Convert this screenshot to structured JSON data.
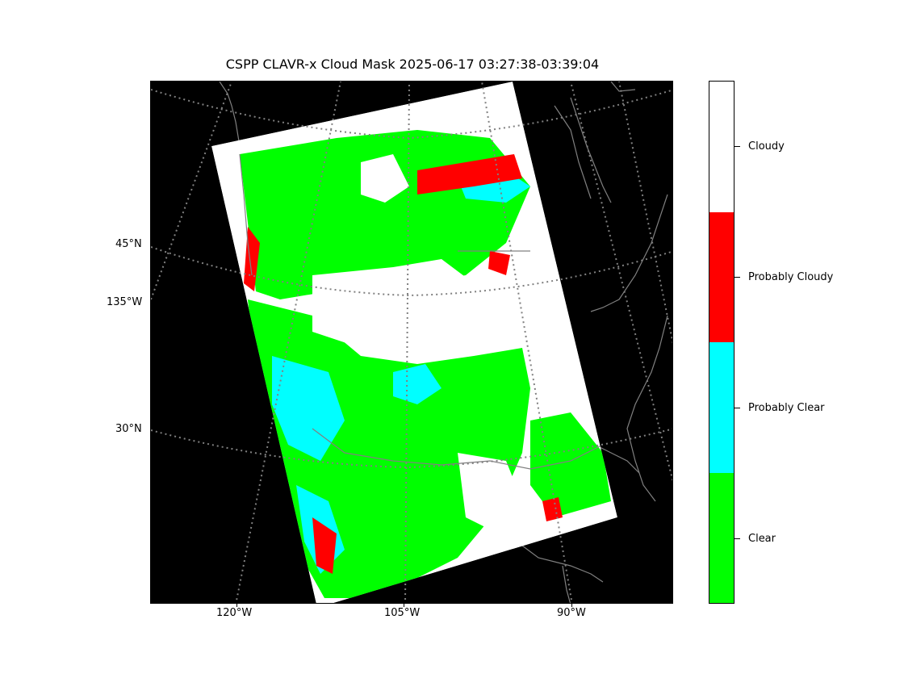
{
  "title": "CSPP CLAVR-x Cloud Mask 2025-06-17 03:27:38-03:39:04",
  "lat_labels": [
    {
      "text": "45°N",
      "lat": 45
    },
    {
      "text": "135°W",
      "lon": -135
    },
    {
      "text": "30°N",
      "lat": 30
    }
  ],
  "lon_labels": [
    {
      "text": "120°W",
      "lon": -120
    },
    {
      "text": "105°W",
      "lon": -105
    },
    {
      "text": "90°W",
      "lon": -90
    }
  ],
  "legend": {
    "categories": [
      {
        "label": "Cloudy",
        "color": "#ffffff"
      },
      {
        "label": "Probably Cloudy",
        "color": "#ff0000"
      },
      {
        "label": "Probably Clear",
        "color": "#00ffff"
      },
      {
        "label": "Clear",
        "color": "#00ff00"
      }
    ]
  },
  "colors": {
    "background": "#000000",
    "coastline": "#808080",
    "gridline": "#808080"
  }
}
